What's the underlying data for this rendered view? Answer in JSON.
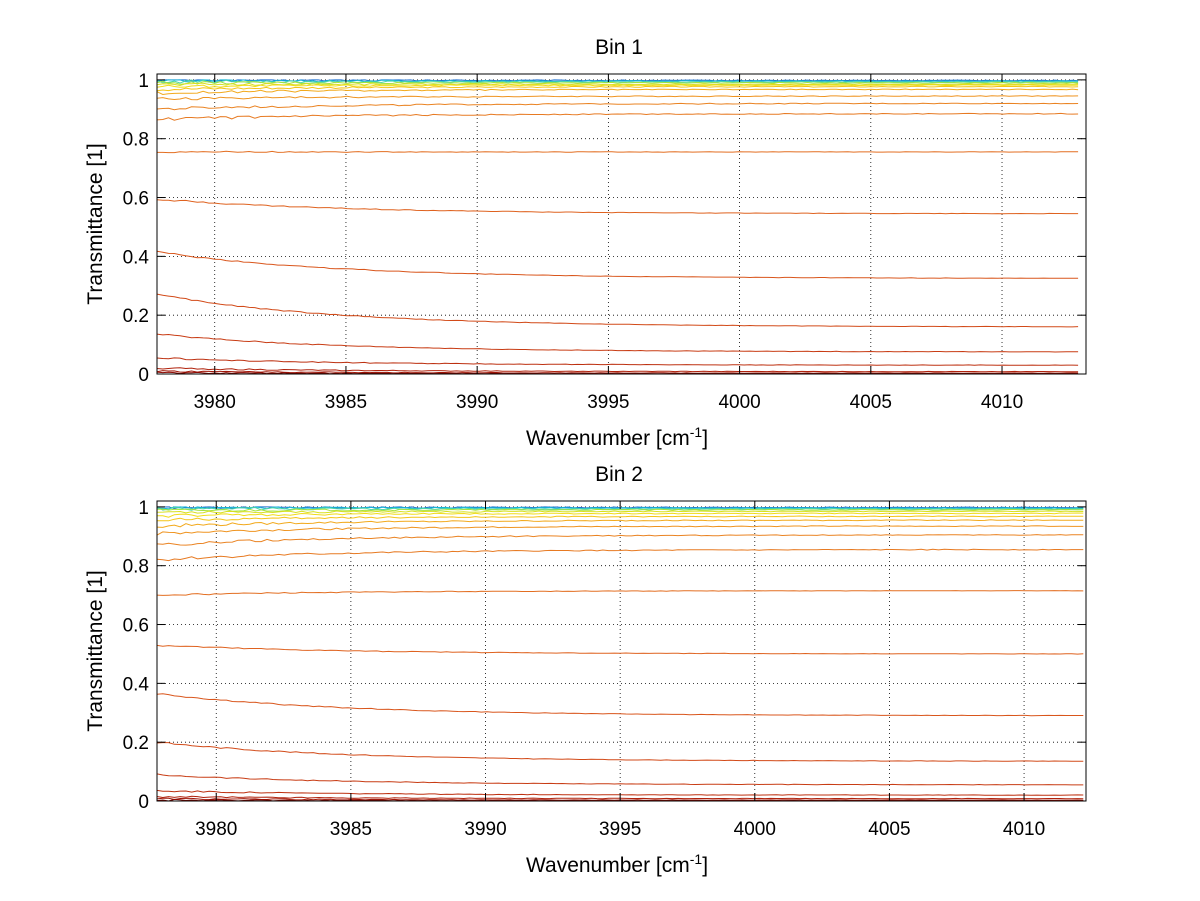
{
  "chart_data": [
    {
      "type": "line",
      "title": "Bin 1",
      "xlabel": "Wavenumber [cm",
      "xlabel_sup": "-1",
      "xlabel_end": "]",
      "ylabel": "Transmittance [1]",
      "xlim": [
        3977.8,
        4013.2
      ],
      "ylim": [
        0,
        1.02
      ],
      "x_range": [
        3977.8,
        4012.9
      ],
      "xticks": [
        3980,
        3985,
        3990,
        3995,
        4000,
        4005,
        4010
      ],
      "yticks": [
        0,
        0.2,
        0.4,
        0.6,
        0.8,
        1
      ],
      "ytick_labels": [
        "0",
        "0.2",
        "0.4",
        "0.6",
        "0.8",
        "1"
      ],
      "grid": true,
      "series": [
        {
          "color": "#1e6fd0",
          "start": 1.0,
          "end": 0.998
        },
        {
          "color": "#17b6d8",
          "start": 0.998,
          "end": 0.996
        },
        {
          "color": "#4bd6a8",
          "start": 0.995,
          "end": 0.993
        },
        {
          "color": "#a6e23d",
          "start": 0.99,
          "end": 0.99
        },
        {
          "color": "#d8e020",
          "start": 0.985,
          "end": 0.985
        },
        {
          "color": "#f0dc18",
          "start": 0.978,
          "end": 0.982
        },
        {
          "color": "#f4c417",
          "start": 0.968,
          "end": 0.977
        },
        {
          "color": "#f2a91c",
          "start": 0.955,
          "end": 0.968
        },
        {
          "color": "#ef9420",
          "start": 0.935,
          "end": 0.945
        },
        {
          "color": "#ea8322",
          "start": 0.9,
          "end": 0.92
        },
        {
          "color": "#e77a22",
          "start": 0.865,
          "end": 0.885
        },
        {
          "color": "#e36e21",
          "start": 0.755,
          "end": 0.755
        },
        {
          "color": "#df621f",
          "start": 0.595,
          "end": 0.545
        },
        {
          "color": "#d9561c",
          "start": 0.415,
          "end": 0.325
        },
        {
          "color": "#d24a18",
          "start": 0.27,
          "end": 0.16
        },
        {
          "color": "#c83c14",
          "start": 0.135,
          "end": 0.075
        },
        {
          "color": "#bd3010",
          "start": 0.055,
          "end": 0.03
        },
        {
          "color": "#b0220c",
          "start": 0.02,
          "end": 0.008
        },
        {
          "color": "#a01608",
          "start": 0.01,
          "end": 0.003
        },
        {
          "color": "#8e0c05",
          "start": 0.004,
          "end": 0.001
        }
      ]
    },
    {
      "type": "line",
      "title": "Bin 2",
      "xlabel": "Wavenumber [cm",
      "xlabel_sup": "-1",
      "xlabel_end": "]",
      "ylabel": "Transmittance [1]",
      "xlim": [
        3977.8,
        4012.3
      ],
      "ylim": [
        0,
        1.02
      ],
      "x_range": [
        3977.8,
        4012.2
      ],
      "xticks": [
        3980,
        3985,
        3990,
        3995,
        4000,
        4005,
        4010
      ],
      "yticks": [
        0,
        0.2,
        0.4,
        0.6,
        0.8,
        1
      ],
      "ytick_labels": [
        "0",
        "0.2",
        "0.4",
        "0.6",
        "0.8",
        "1"
      ],
      "grid": true,
      "series": [
        {
          "color": "#1e6fd0",
          "start": 1.0,
          "end": 0.998
        },
        {
          "color": "#17b6d8",
          "start": 0.998,
          "end": 0.996
        },
        {
          "color": "#4bd6a8",
          "start": 0.994,
          "end": 0.993
        },
        {
          "color": "#a6e23d",
          "start": 0.988,
          "end": 0.99
        },
        {
          "color": "#d8e020",
          "start": 0.98,
          "end": 0.985
        },
        {
          "color": "#f0dc18",
          "start": 0.97,
          "end": 0.978
        },
        {
          "color": "#f4c417",
          "start": 0.955,
          "end": 0.968
        },
        {
          "color": "#f2a91c",
          "start": 0.935,
          "end": 0.955
        },
        {
          "color": "#ef9420",
          "start": 0.91,
          "end": 0.935
        },
        {
          "color": "#ea8322",
          "start": 0.87,
          "end": 0.905
        },
        {
          "color": "#e77a22",
          "start": 0.82,
          "end": 0.855
        },
        {
          "color": "#e36e21",
          "start": 0.7,
          "end": 0.715
        },
        {
          "color": "#df621f",
          "start": 0.53,
          "end": 0.5
        },
        {
          "color": "#d9561c",
          "start": 0.365,
          "end": 0.29
        },
        {
          "color": "#d24a18",
          "start": 0.2,
          "end": 0.135
        },
        {
          "color": "#c83c14",
          "start": 0.09,
          "end": 0.055
        },
        {
          "color": "#bd3010",
          "start": 0.035,
          "end": 0.02
        },
        {
          "color": "#b0220c",
          "start": 0.015,
          "end": 0.008
        },
        {
          "color": "#a01608",
          "start": 0.008,
          "end": 0.003
        },
        {
          "color": "#8e0c05",
          "start": 0.003,
          "end": 0.001
        }
      ]
    }
  ]
}
